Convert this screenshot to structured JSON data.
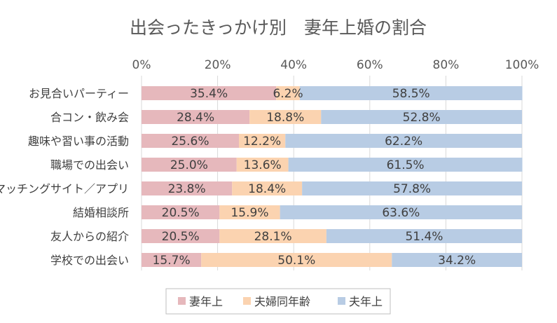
{
  "chart_data": {
    "type": "bar",
    "orientation": "horizontal",
    "stacked": "percent",
    "title": "出会ったきっかけ別　妻年上婚の割合",
    "categories": [
      "お見合いパーティー",
      "合コン・飲み会",
      "趣味や習い事の活動",
      "職場での出会い",
      "マッチングサイト／アプリ",
      "結婚相談所",
      "友人からの紹介",
      "学校での出会い"
    ],
    "series": [
      {
        "name": "妻年上",
        "color": "#e6b8bc",
        "values": [
          35.4,
          28.4,
          25.6,
          25.0,
          23.8,
          20.5,
          20.5,
          15.7
        ]
      },
      {
        "name": "夫婦同年齢",
        "color": "#fbd3b0",
        "values": [
          6.2,
          18.8,
          12.2,
          13.6,
          18.4,
          15.9,
          28.1,
          50.1
        ]
      },
      {
        "name": "夫年上",
        "color": "#b8cce4",
        "values": [
          58.5,
          52.8,
          62.2,
          61.5,
          57.8,
          63.6,
          51.4,
          34.2
        ]
      }
    ],
    "value_labels": [
      [
        "35.4%",
        "28.4%",
        "25.6%",
        "25.0%",
        "23.8%",
        "20.5%",
        "20.5%",
        "15.7%"
      ],
      [
        "6.2%",
        "18.8%",
        "12.2%",
        "13.6%",
        "18.4%",
        "15.9%",
        "28.1%",
        "50.1%"
      ],
      [
        "58.5%",
        "52.8%",
        "62.2%",
        "61.5%",
        "57.8%",
        "63.6%",
        "51.4%",
        "34.2%"
      ]
    ],
    "x_ticks": [
      "0%",
      "20%",
      "40%",
      "60%",
      "80%",
      "100%"
    ],
    "x_tick_values": [
      0,
      20,
      40,
      60,
      80,
      100
    ],
    "xlim": [
      0,
      100
    ],
    "axis_position": "top",
    "grid": true,
    "legend_position": "bottom"
  }
}
